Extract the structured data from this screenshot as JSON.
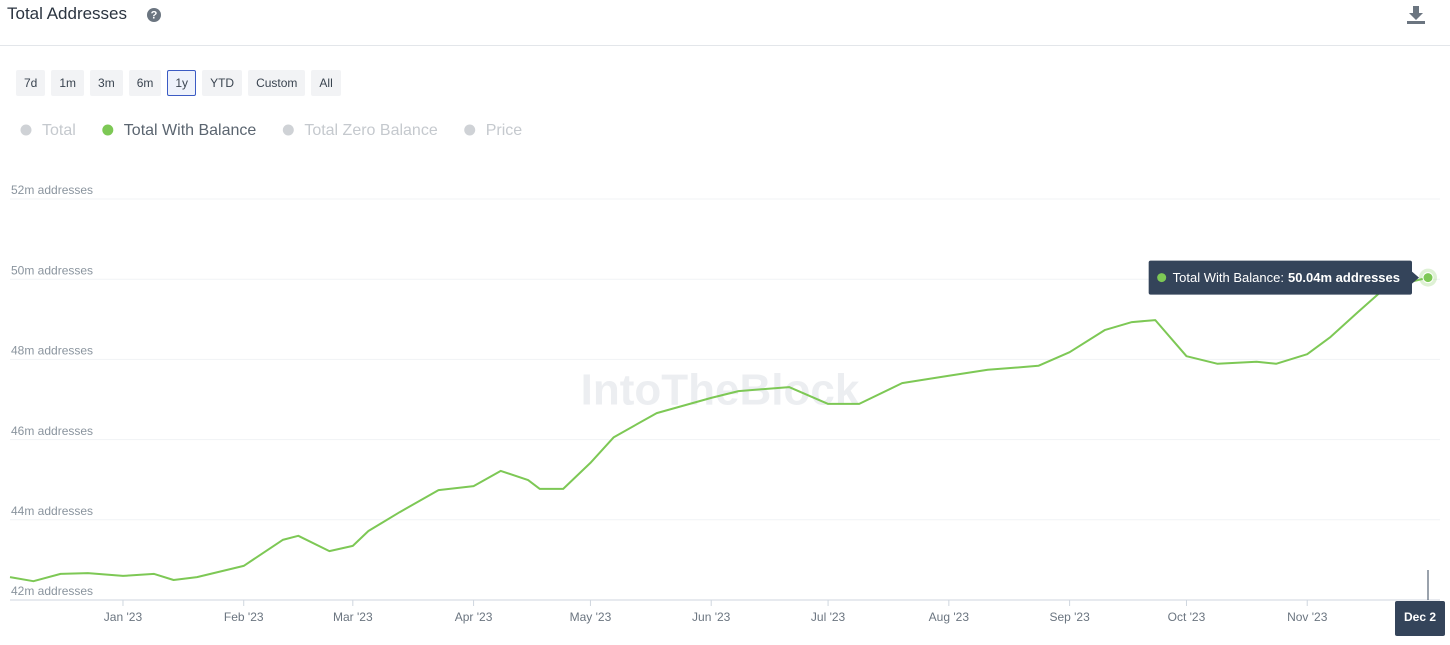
{
  "header": {
    "title": "Total Addresses"
  },
  "ranges": {
    "options": [
      "7d",
      "1m",
      "3m",
      "6m",
      "1y",
      "YTD",
      "Custom",
      "All"
    ],
    "selected": "1y"
  },
  "chart_data": {
    "type": "line",
    "watermark": "IntoTheBlock",
    "x": [
      "2022-12-03",
      "2022-12-09",
      "2022-12-16",
      "2022-12-23",
      "2023-01-01",
      "2023-01-09",
      "2023-01-14",
      "2023-01-20",
      "2023-02-01",
      "2023-02-11",
      "2023-02-15",
      "2023-02-23",
      "2023-03-01",
      "2023-03-05",
      "2023-03-13",
      "2023-03-23",
      "2023-04-01",
      "2023-04-08",
      "2023-04-15",
      "2023-04-18",
      "2023-04-24",
      "2023-05-01",
      "2023-05-07",
      "2023-05-18",
      "2023-06-01",
      "2023-06-08",
      "2023-06-21",
      "2023-07-01",
      "2023-07-09",
      "2023-07-20",
      "2023-08-01",
      "2023-08-11",
      "2023-08-24",
      "2023-09-01",
      "2023-09-10",
      "2023-09-17",
      "2023-09-23",
      "2023-10-01",
      "2023-10-09",
      "2023-10-19",
      "2023-10-24",
      "2023-11-01",
      "2023-11-07",
      "2023-11-14",
      "2023-11-21",
      "2023-12-02"
    ],
    "series": [
      {
        "name": "Total",
        "color": "#cfd2d6",
        "visible": false
      },
      {
        "name": "Total With Balance",
        "color": "#7dc855",
        "visible": true,
        "values": [
          42.57,
          42.47,
          42.65,
          42.67,
          42.6,
          42.65,
          42.5,
          42.57,
          42.85,
          43.5,
          43.6,
          43.22,
          43.35,
          43.72,
          44.19,
          44.74,
          44.84,
          45.22,
          44.99,
          44.77,
          44.77,
          45.42,
          46.06,
          46.66,
          47.04,
          47.21,
          47.31,
          46.89,
          46.89,
          47.41,
          47.59,
          47.74,
          47.84,
          48.18,
          48.73,
          48.93,
          48.98,
          48.08,
          47.89,
          47.94,
          47.89,
          48.13,
          48.56,
          49.18,
          49.78,
          50.04
        ]
      },
      {
        "name": "Total Zero Balance",
        "color": "#cfd2d6",
        "visible": false
      },
      {
        "name": "Price",
        "color": "#cfd2d6",
        "visible": false
      }
    ],
    "xlim": [
      "2022-12-03",
      "2023-12-02"
    ],
    "xticks": [
      {
        "value": "2023-01-01",
        "label": "Jan '23"
      },
      {
        "value": "2023-02-01",
        "label": "Feb '23"
      },
      {
        "value": "2023-03-01",
        "label": "Mar '23"
      },
      {
        "value": "2023-04-01",
        "label": "Apr '23"
      },
      {
        "value": "2023-05-01",
        "label": "May '23"
      },
      {
        "value": "2023-06-01",
        "label": "Jun '23"
      },
      {
        "value": "2023-07-01",
        "label": "Jul '23"
      },
      {
        "value": "2023-08-01",
        "label": "Aug '23"
      },
      {
        "value": "2023-09-01",
        "label": "Sep '23"
      },
      {
        "value": "2023-10-01",
        "label": "Oct '23"
      },
      {
        "value": "2023-11-01",
        "label": "Nov '23"
      }
    ],
    "ylim": [
      42,
      52
    ],
    "yticks": [
      {
        "value": 42,
        "label": "42m addresses"
      },
      {
        "value": 44,
        "label": "44m addresses"
      },
      {
        "value": 46,
        "label": "46m addresses"
      },
      {
        "value": 48,
        "label": "48m addresses"
      },
      {
        "value": 50,
        "label": "50m addresses"
      },
      {
        "value": 52,
        "label": "52m addresses"
      }
    ],
    "grid": true,
    "tooltip": {
      "date": "Dec 2",
      "value_label": "50.04m addresses"
    }
  }
}
